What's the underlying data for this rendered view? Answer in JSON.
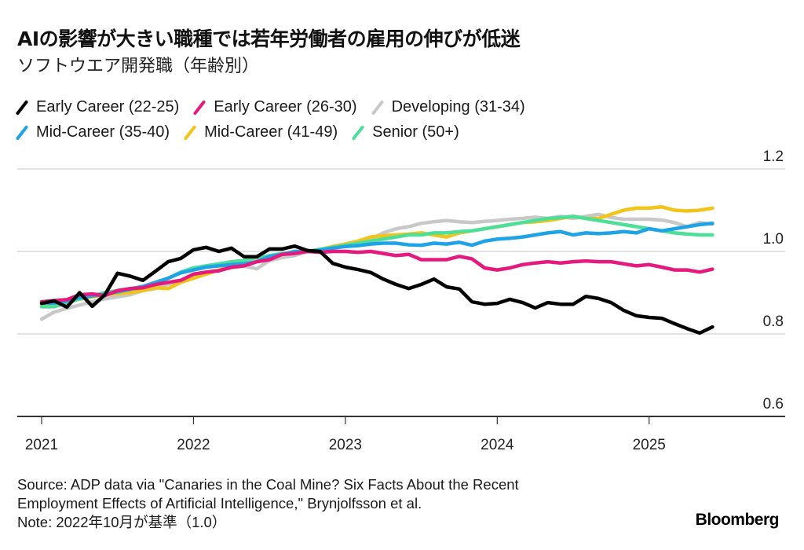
{
  "header": {
    "title": "AIの影響が大きい職種では若年労働者の雇用の伸びが低迷",
    "subtitle": "ソフトウエア開発職（年齢別）"
  },
  "footer": {
    "source_line1": "Source: ADP data via \"Canaries in the Coal Mine? Six Facts About the Recent",
    "source_line2": "Employment Effects of Artificial Intelligence,\" Brynjolfsson et al.",
    "note": "Note: 2022年10月が基準（1.0）",
    "brand": "Bloomberg"
  },
  "chart_data": {
    "type": "line",
    "title": "AIの影響が大きい職種では若年労働者の雇用の伸びが低迷",
    "subtitle": "ソフトウエア開発職（年齢別）",
    "xlabel": "",
    "ylabel": "",
    "x_start": "2021-01",
    "x_step": "month",
    "x_ticks": [
      "2021",
      "2022",
      "2023",
      "2024",
      "2025"
    ],
    "y_ticks": [
      "0.6",
      "0.8",
      "1.0",
      "1.2"
    ],
    "ylim": [
      0.6,
      1.2
    ],
    "y_axis_side": "right",
    "grid": true,
    "legend_position": "top-left",
    "series": [
      {
        "name": "Early Career (22-25)",
        "color": "#000000",
        "values": [
          0.874,
          0.88,
          0.865,
          0.9,
          0.867,
          0.895,
          0.947,
          0.94,
          0.93,
          0.952,
          0.975,
          0.983,
          1.004,
          1.01,
          1.0,
          1.008,
          0.987,
          0.987,
          1.006,
          1.006,
          1.013,
          1.002,
          1.0,
          0.971,
          0.962,
          0.956,
          0.949,
          0.933,
          0.92,
          0.91,
          0.92,
          0.933,
          0.914,
          0.909,
          0.878,
          0.872,
          0.874,
          0.884,
          0.876,
          0.863,
          0.876,
          0.872,
          0.872,
          0.891,
          0.886,
          0.876,
          0.857,
          0.844,
          0.84,
          0.838,
          0.825,
          0.813,
          0.802,
          0.817
        ]
      },
      {
        "name": "Early Career (26-30)",
        "color": "#e5197e",
        "values": [
          0.878,
          0.881,
          0.883,
          0.895,
          0.897,
          0.893,
          0.905,
          0.91,
          0.912,
          0.92,
          0.925,
          0.93,
          0.945,
          0.95,
          0.953,
          0.962,
          0.965,
          0.975,
          0.98,
          0.993,
          0.995,
          1.0,
          0.998,
          1.0,
          1.0,
          0.998,
          1.0,
          0.995,
          0.99,
          0.993,
          0.98,
          0.98,
          0.98,
          0.988,
          0.982,
          0.96,
          0.955,
          0.96,
          0.968,
          0.972,
          0.975,
          0.972,
          0.975,
          0.977,
          0.975,
          0.975,
          0.97,
          0.965,
          0.968,
          0.962,
          0.955,
          0.955,
          0.95,
          0.957
        ]
      },
      {
        "name": "Developing (31-34)",
        "color": "#c8c8c8",
        "values": [
          0.836,
          0.853,
          0.862,
          0.87,
          0.878,
          0.885,
          0.89,
          0.895,
          0.905,
          0.91,
          0.92,
          0.93,
          0.94,
          0.95,
          0.955,
          0.96,
          0.965,
          0.958,
          0.978,
          0.985,
          0.99,
          1.0,
          1.003,
          1.01,
          1.012,
          1.015,
          1.03,
          1.045,
          1.055,
          1.06,
          1.068,
          1.072,
          1.075,
          1.072,
          1.07,
          1.073,
          1.075,
          1.078,
          1.08,
          1.083,
          1.08,
          1.085,
          1.08,
          1.085,
          1.09,
          1.082,
          1.078,
          1.078,
          1.078,
          1.076,
          1.07,
          1.06,
          1.07,
          1.066
        ]
      },
      {
        "name": "Mid-Career (35-40)",
        "color": "#1ea3e6",
        "values": [
          0.875,
          0.875,
          0.88,
          0.888,
          0.892,
          0.896,
          0.902,
          0.908,
          0.915,
          0.925,
          0.935,
          0.948,
          0.955,
          0.962,
          0.965,
          0.968,
          0.97,
          0.975,
          0.988,
          0.993,
          1.0,
          1.0,
          1.003,
          1.008,
          1.012,
          1.014,
          1.018,
          1.02,
          1.02,
          1.016,
          1.015,
          1.02,
          1.018,
          1.022,
          1.015,
          1.025,
          1.03,
          1.032,
          1.035,
          1.04,
          1.045,
          1.048,
          1.04,
          1.045,
          1.043,
          1.045,
          1.048,
          1.045,
          1.055,
          1.05,
          1.055,
          1.06,
          1.065,
          1.068
        ]
      },
      {
        "name": "Mid-Career (41-49)",
        "color": "#f2c318",
        "values": [
          0.87,
          0.874,
          0.88,
          0.884,
          0.89,
          0.895,
          0.898,
          0.9,
          0.905,
          0.912,
          0.91,
          0.925,
          0.935,
          0.945,
          0.955,
          0.962,
          0.968,
          0.975,
          0.985,
          0.992,
          0.997,
          1.0,
          1.005,
          1.012,
          1.018,
          1.025,
          1.035,
          1.038,
          1.04,
          1.042,
          1.045,
          1.04,
          1.035,
          1.045,
          1.05,
          1.055,
          1.06,
          1.065,
          1.07,
          1.072,
          1.075,
          1.08,
          1.085,
          1.08,
          1.08,
          1.09,
          1.1,
          1.105,
          1.105,
          1.108,
          1.1,
          1.098,
          1.1,
          1.105
        ]
      },
      {
        "name": "Senior (50+)",
        "color": "#4ddf9a",
        "values": [
          0.866,
          0.866,
          0.875,
          0.885,
          0.893,
          0.9,
          0.905,
          0.91,
          0.915,
          0.925,
          0.935,
          0.95,
          0.96,
          0.965,
          0.97,
          0.975,
          0.978,
          0.985,
          0.99,
          0.995,
          0.998,
          1.0,
          1.005,
          1.01,
          1.015,
          1.02,
          1.025,
          1.03,
          1.035,
          1.04,
          1.04,
          1.045,
          1.045,
          1.048,
          1.05,
          1.055,
          1.06,
          1.065,
          1.07,
          1.075,
          1.08,
          1.082,
          1.085,
          1.08,
          1.075,
          1.07,
          1.065,
          1.06,
          1.055,
          1.05,
          1.045,
          1.042,
          1.04,
          1.04
        ]
      }
    ]
  }
}
